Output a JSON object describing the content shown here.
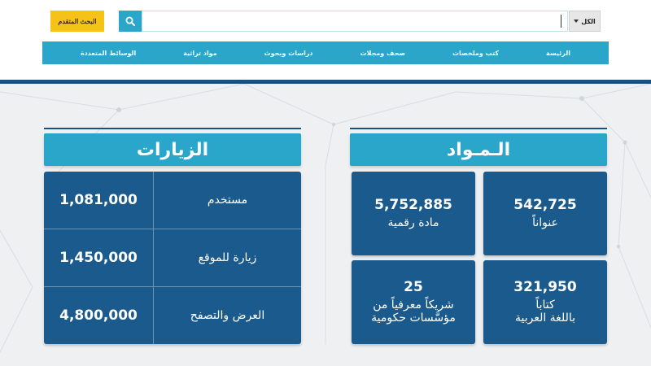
{
  "header": {
    "advanced_search_label": "البحث المتقدم",
    "search_value": "",
    "scope_selected": "الكل"
  },
  "nav": {
    "items": [
      {
        "label": "الرئيسة"
      },
      {
        "label": "كتب وملخصات"
      },
      {
        "label": "صحف ومجلات"
      },
      {
        "label": "دراسات وبحوث"
      },
      {
        "label": "مواد تراثية"
      },
      {
        "label": "الوسائط المتعددة"
      }
    ]
  },
  "materials": {
    "title": "الـمـواد",
    "cards": [
      {
        "value": "542,725",
        "label": "عنواناً"
      },
      {
        "value": "5,752,885",
        "label": "مادة رقمية"
      },
      {
        "value": "321,950",
        "label_line1": "كتاباً",
        "label_line2": "باللغة العربية"
      },
      {
        "value": "25",
        "label_line1": "شريكاً معرفياً من",
        "label_line2": "مؤسَّسات حكومية"
      }
    ]
  },
  "visits": {
    "title": "الزيارات",
    "rows": [
      {
        "value": "1,081,000",
        "label": "مستخدم"
      },
      {
        "value": "1,450,000",
        "label": "زيارة للموقع"
      },
      {
        "value": "4,800,000",
        "label": "العرض والتصفح"
      }
    ]
  },
  "colors": {
    "accent": "#29a6c9",
    "dark_blue": "#1b5a8c",
    "yellow": "#f6c21a"
  }
}
